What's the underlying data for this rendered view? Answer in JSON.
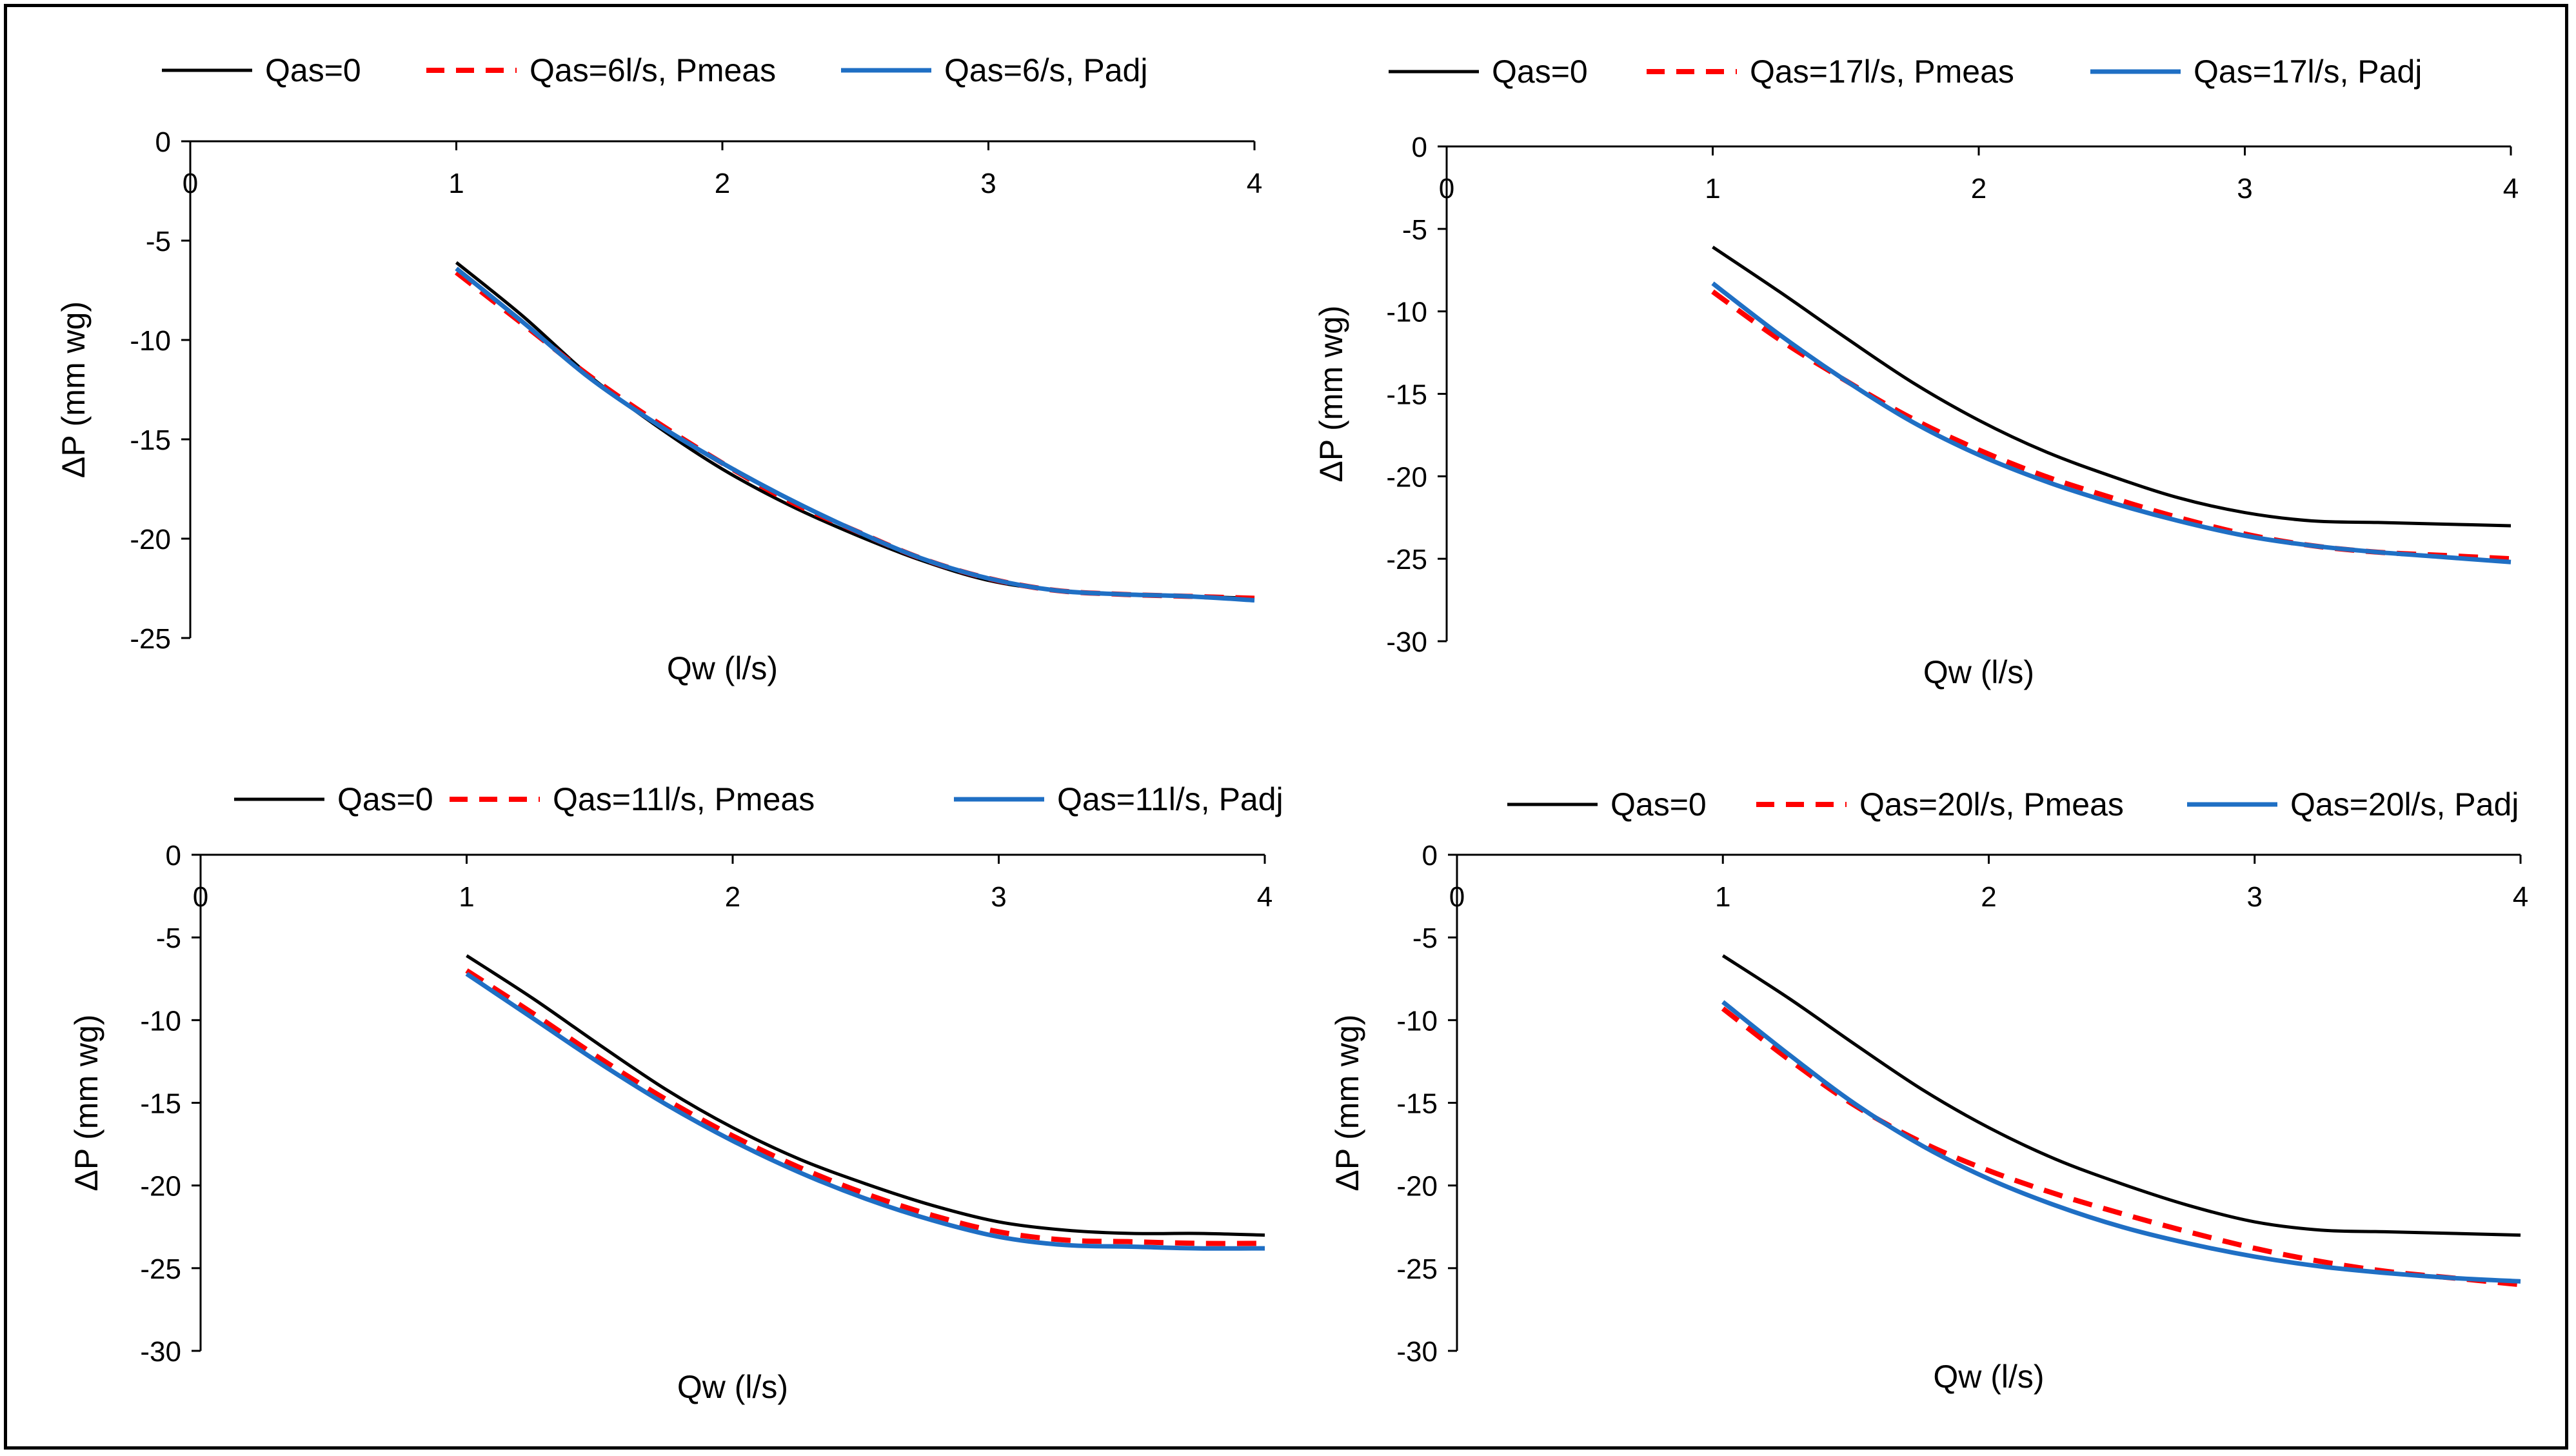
{
  "chart_data": [
    {
      "type": "line",
      "panel": "top-left",
      "legend_position": "top",
      "xlabel": "Qw (l/s)",
      "ylabel": "ΔP (mm wg)",
      "xlim": [
        0,
        4
      ],
      "ylim": [
        -25,
        0
      ],
      "xticks": [
        0,
        1,
        2,
        3,
        4
      ],
      "yticks": [
        0,
        -5,
        -10,
        -15,
        -20,
        -25
      ],
      "grid": false,
      "series": [
        {
          "name": "Qas=0",
          "color": "#000000",
          "style": "solid",
          "x": [
            1,
            1.25,
            1.5,
            1.75,
            2,
            2.25,
            2.5,
            2.75,
            3,
            3.25,
            3.5,
            3.75,
            4
          ],
          "y": [
            -6.1,
            -8.8,
            -11.8,
            -14.3,
            -16.5,
            -18.3,
            -19.8,
            -21.1,
            -22.1,
            -22.6,
            -22.8,
            -22.9,
            -23.0
          ]
        },
        {
          "name": "Qas=6l/s, Pmeas",
          "color": "#ff0000",
          "style": "dashed",
          "x": [
            1,
            1.25,
            1.5,
            1.75,
            2,
            2.25,
            2.5,
            2.75,
            3,
            3.25,
            3.5,
            3.75,
            4
          ],
          "y": [
            -6.6,
            -9.2,
            -11.8,
            -14.1,
            -16.2,
            -18.1,
            -19.6,
            -21.0,
            -22.0,
            -22.6,
            -22.8,
            -22.9,
            -23.0
          ]
        },
        {
          "name": "Qas=6/s, Padj",
          "color": "#1f6fc4",
          "style": "solid",
          "x": [
            1,
            1.25,
            1.5,
            1.75,
            2,
            2.25,
            2.5,
            2.75,
            3,
            3.25,
            3.5,
            3.75,
            4
          ],
          "y": [
            -6.4,
            -9.1,
            -11.9,
            -14.2,
            -16.2,
            -18.0,
            -19.6,
            -21.0,
            -22.0,
            -22.6,
            -22.8,
            -22.9,
            -23.1
          ]
        }
      ]
    },
    {
      "type": "line",
      "panel": "top-right",
      "legend_position": "top",
      "xlabel": "Qw (l/s)",
      "ylabel": "ΔP (mm wg)",
      "xlim": [
        0,
        4
      ],
      "ylim": [
        -30,
        0
      ],
      "xticks": [
        0,
        1,
        2,
        3,
        4
      ],
      "yticks": [
        0,
        -5,
        -10,
        -15,
        -20,
        -25,
        -30
      ],
      "grid": false,
      "series": [
        {
          "name": "Qas=0",
          "color": "#000000",
          "style": "solid",
          "x": [
            1,
            1.25,
            1.5,
            1.75,
            2,
            2.25,
            2.5,
            2.75,
            3,
            3.25,
            3.5,
            3.75,
            4
          ],
          "y": [
            -6.1,
            -8.8,
            -11.6,
            -14.3,
            -16.6,
            -18.5,
            -20.0,
            -21.3,
            -22.2,
            -22.7,
            -22.8,
            -22.9,
            -23.0
          ]
        },
        {
          "name": "Qas=17l/s, Pmeas",
          "color": "#ff0000",
          "style": "dashed",
          "x": [
            1,
            1.25,
            1.5,
            1.75,
            2,
            2.25,
            2.5,
            2.75,
            3,
            3.25,
            3.5,
            3.75,
            4
          ],
          "y": [
            -8.8,
            -11.7,
            -14.2,
            -16.5,
            -18.4,
            -20.0,
            -21.3,
            -22.5,
            -23.5,
            -24.2,
            -24.6,
            -24.8,
            -25.0
          ]
        },
        {
          "name": "Qas=17l/s, Padj",
          "color": "#1f6fc4",
          "style": "solid",
          "x": [
            1,
            1.25,
            1.5,
            1.75,
            2,
            2.25,
            2.5,
            2.75,
            3,
            3.25,
            3.5,
            3.75,
            4
          ],
          "y": [
            -8.3,
            -11.4,
            -14.2,
            -16.7,
            -18.7,
            -20.3,
            -21.6,
            -22.7,
            -23.6,
            -24.2,
            -24.6,
            -24.9,
            -25.2
          ]
        }
      ]
    },
    {
      "type": "line",
      "panel": "bottom-left",
      "legend_position": "top",
      "xlabel": "Qw (l/s)",
      "ylabel": "ΔP (mm wg)",
      "xlim": [
        0,
        4
      ],
      "ylim": [
        -30,
        0
      ],
      "xticks": [
        0,
        1,
        2,
        3,
        4
      ],
      "yticks": [
        0,
        -5,
        -10,
        -15,
        -20,
        -25,
        -30
      ],
      "grid": false,
      "series": [
        {
          "name": "Qas=0",
          "color": "#000000",
          "style": "solid",
          "x": [
            1,
            1.25,
            1.5,
            1.75,
            2,
            2.25,
            2.5,
            2.75,
            3,
            3.25,
            3.5,
            3.75,
            4
          ],
          "y": [
            -6.1,
            -8.7,
            -11.5,
            -14.2,
            -16.5,
            -18.4,
            -19.9,
            -21.2,
            -22.2,
            -22.7,
            -22.9,
            -22.9,
            -23.0
          ]
        },
        {
          "name": "Qas=11l/s, Pmeas",
          "color": "#ff0000",
          "style": "dashed",
          "x": [
            1,
            1.25,
            1.5,
            1.75,
            2,
            2.25,
            2.5,
            2.75,
            3,
            3.25,
            3.5,
            3.75,
            4
          ],
          "y": [
            -7.0,
            -9.6,
            -12.3,
            -14.8,
            -17.0,
            -18.9,
            -20.5,
            -21.8,
            -22.8,
            -23.3,
            -23.4,
            -23.5,
            -23.5
          ]
        },
        {
          "name": "Qas=11l/s, Padj",
          "color": "#1f6fc4",
          "style": "solid",
          "x": [
            1,
            1.25,
            1.5,
            1.75,
            2,
            2.25,
            2.5,
            2.75,
            3,
            3.25,
            3.5,
            3.75,
            4
          ],
          "y": [
            -7.2,
            -9.9,
            -12.6,
            -15.1,
            -17.3,
            -19.2,
            -20.8,
            -22.1,
            -23.1,
            -23.6,
            -23.7,
            -23.8,
            -23.8
          ]
        }
      ]
    },
    {
      "type": "line",
      "panel": "bottom-right",
      "legend_position": "top",
      "xlabel": "Qw (l/s)",
      "ylabel": "ΔP (mm wg)",
      "xlim": [
        0,
        4
      ],
      "ylim": [
        -30,
        0
      ],
      "xticks": [
        0,
        1,
        2,
        3,
        4
      ],
      "yticks": [
        0,
        -5,
        -10,
        -15,
        -20,
        -25,
        -30
      ],
      "grid": false,
      "series": [
        {
          "name": "Qas=0",
          "color": "#000000",
          "style": "solid",
          "x": [
            1,
            1.25,
            1.5,
            1.75,
            2,
            2.25,
            2.5,
            2.75,
            3,
            3.25,
            3.5,
            3.75,
            4
          ],
          "y": [
            -6.1,
            -8.7,
            -11.5,
            -14.2,
            -16.5,
            -18.4,
            -19.9,
            -21.2,
            -22.2,
            -22.7,
            -22.8,
            -22.9,
            -23.0
          ]
        },
        {
          "name": "Qas=20l/s, Pmeas",
          "color": "#ff0000",
          "style": "dashed",
          "x": [
            1,
            1.25,
            1.5,
            1.75,
            2,
            2.25,
            2.5,
            2.75,
            3,
            3.25,
            3.5,
            3.75,
            4
          ],
          "y": [
            -9.3,
            -12.4,
            -15.2,
            -17.4,
            -19.1,
            -20.5,
            -21.7,
            -22.8,
            -23.8,
            -24.6,
            -25.2,
            -25.6,
            -26.0
          ]
        },
        {
          "name": "Qas=20l/s, Padj",
          "color": "#1f6fc4",
          "style": "solid",
          "x": [
            1,
            1.25,
            1.5,
            1.75,
            2,
            2.25,
            2.5,
            2.75,
            3,
            3.25,
            3.5,
            3.75,
            4
          ],
          "y": [
            -8.9,
            -12.1,
            -15.1,
            -17.6,
            -19.6,
            -21.2,
            -22.5,
            -23.5,
            -24.3,
            -24.9,
            -25.3,
            -25.6,
            -25.8
          ]
        }
      ]
    }
  ]
}
